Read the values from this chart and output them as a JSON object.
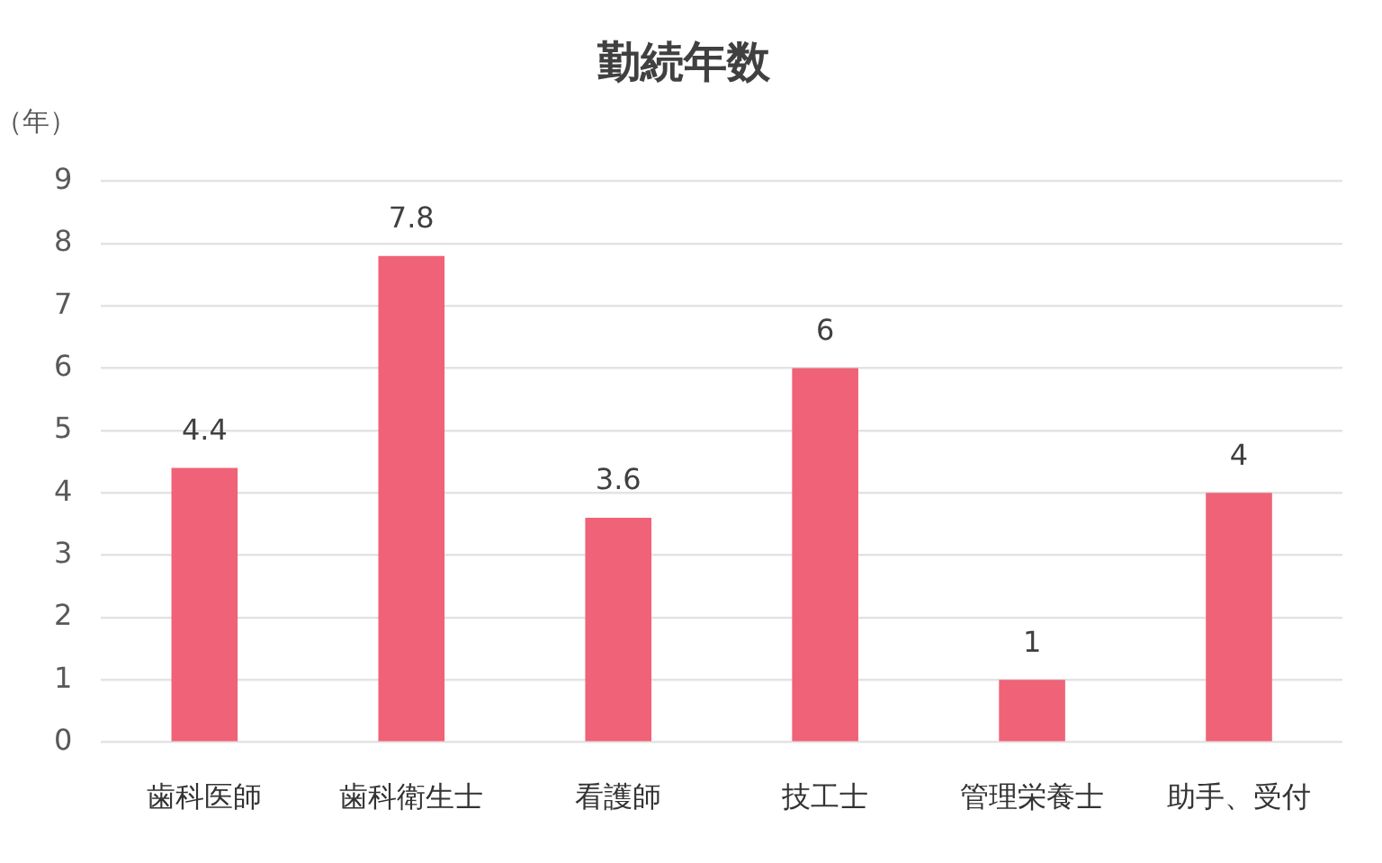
{
  "chart_data": {
    "type": "bar",
    "title": "勤続年数",
    "ylabel": "（年）",
    "categories": [
      "歯科医師",
      "歯科衛生士",
      "看護師",
      "技工士",
      "管理栄養士",
      "助手、受付"
    ],
    "values": [
      4.4,
      7.8,
      3.6,
      6,
      1,
      4
    ],
    "color": "#f06277",
    "ylim": [
      0,
      9
    ],
    "yticks": [
      0,
      1,
      2,
      3,
      4,
      5,
      6,
      7,
      8,
      9
    ],
    "grid": "y",
    "data_labels": true
  }
}
